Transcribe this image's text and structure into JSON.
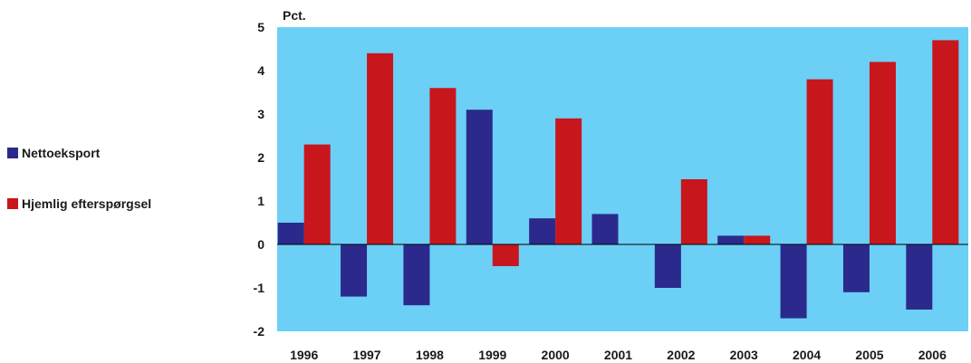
{
  "chart_data": {
    "type": "bar",
    "ylabel": "Pct.",
    "ylim": [
      -2,
      5
    ],
    "yticks": [
      5,
      4,
      3,
      2,
      1,
      0,
      -1,
      -2
    ],
    "categories": [
      "1996",
      "1997",
      "1998",
      "1999",
      "2000",
      "2001",
      "2002",
      "2003",
      "2004",
      "2005",
      "2006"
    ],
    "series": [
      {
        "name": "Nettoeksport",
        "color": "#2b2a8c",
        "values": [
          0.5,
          -1.2,
          -1.4,
          3.1,
          0.6,
          0.7,
          -1.0,
          0.2,
          -1.7,
          -1.1,
          -1.5
        ]
      },
      {
        "name": "Hjemlig efterspørgsel",
        "color": "#c8161d",
        "values": [
          2.3,
          4.4,
          3.6,
          -0.5,
          2.9,
          0,
          1.5,
          0.2,
          3.8,
          4.2,
          4.7
        ]
      }
    ],
    "background": "#6ccff6",
    "legend_position": "left",
    "grid": false
  }
}
